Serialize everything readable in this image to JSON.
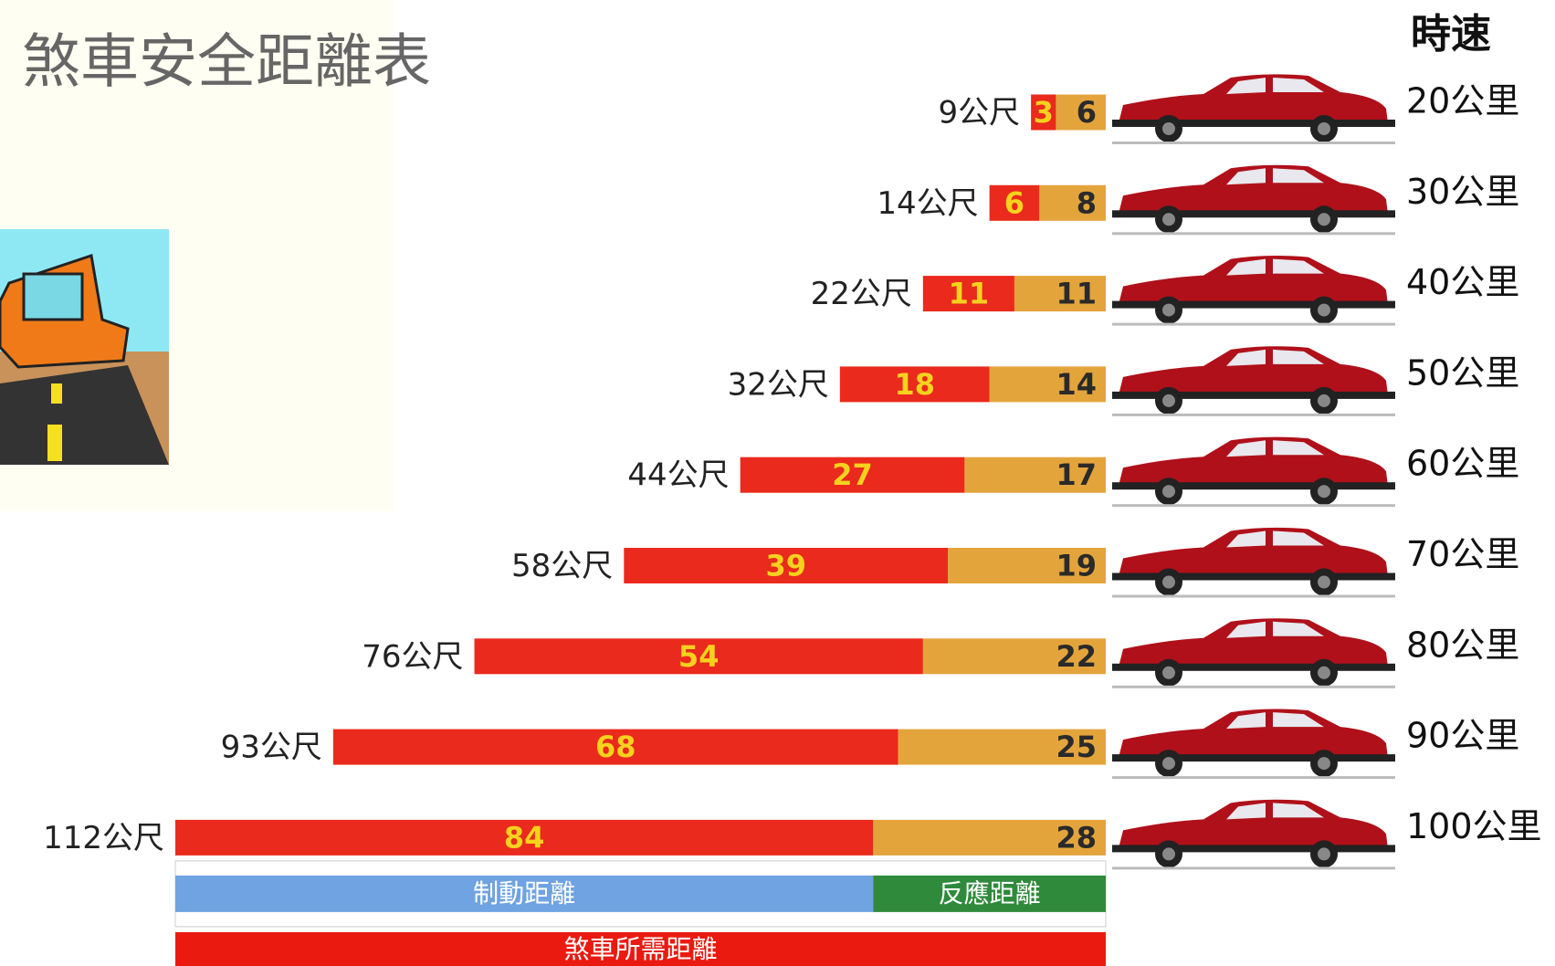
{
  "chart_data": {
    "type": "stacked-bar-horizontal",
    "title": "煞車安全距離表",
    "header": "時速",
    "categories": [
      "20公里",
      "30公里",
      "40公里",
      "50公里",
      "60公里",
      "70公里",
      "80公里",
      "90公里",
      "100公里"
    ],
    "total_labels": [
      "9公尺",
      "14公尺",
      "22公尺",
      "32公尺",
      "44公尺",
      "58公尺",
      "76公尺",
      "93公尺",
      "112公尺"
    ],
    "series": [
      {
        "name": "制動距離",
        "color": "#ea2a1c",
        "label_color": "#f6d21e",
        "legend_color": "#6fa3e2",
        "values": [
          3,
          6,
          11,
          18,
          27,
          39,
          54,
          68,
          84
        ]
      },
      {
        "name": "反應距離",
        "color": "#e4a43c",
        "label_color": "#2a2a2a",
        "legend_color": "#2f8a3c",
        "values": [
          6,
          8,
          11,
          14,
          17,
          19,
          22,
          25,
          28
        ]
      }
    ],
    "total_name": "煞車所需距離",
    "total_color": "#ea1a10",
    "xlim": [
      0,
      112
    ]
  }
}
